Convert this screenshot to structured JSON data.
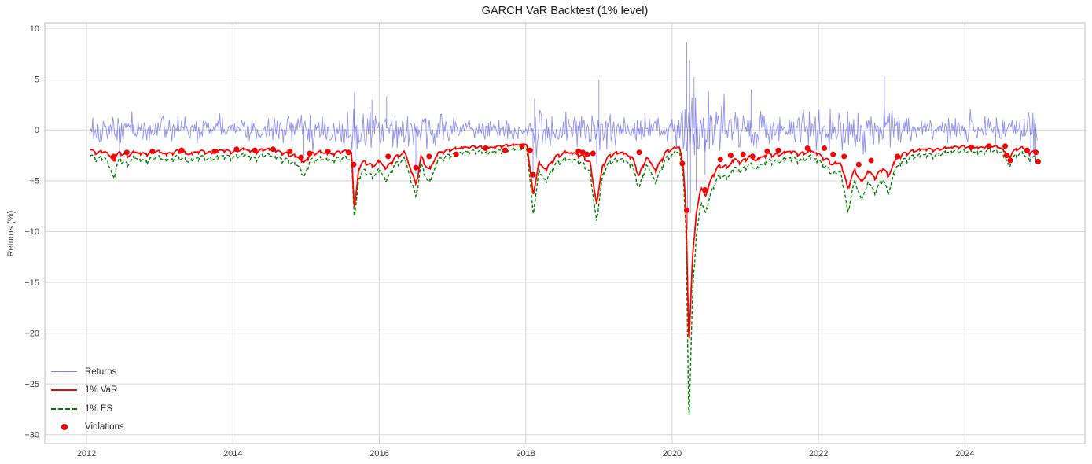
{
  "chart_data": {
    "type": "line",
    "title": "GARCH VaR Backtest (1% level)",
    "xlabel": "",
    "ylabel": "Returns (%)",
    "xlim": [
      2011.43,
      2025.64
    ],
    "ylim": [
      -30.87,
      10.55
    ],
    "x_ticks": [
      2012,
      2014,
      2016,
      2018,
      2020,
      2022,
      2024
    ],
    "y_ticks": [
      10,
      5,
      0,
      -5,
      -10,
      -15,
      -20,
      -25,
      -30
    ],
    "grid": true,
    "legend_position": "lower left",
    "data_range": [
      2012.05,
      2025.0
    ],
    "colors": {
      "returns": "rgba(85,85,235,0.65)",
      "var": "#ff0000",
      "es": "#008000",
      "violations": "#f00404",
      "grid": "#d6d6d6",
      "spine": "#c9c9c9",
      "tick_text": "#3a3a3a"
    },
    "legend": [
      {
        "label": "Returns",
        "marker": "line",
        "color": "rgba(85,85,235,0.75)"
      },
      {
        "label": "1% VaR",
        "marker": "line",
        "color": "#ff0000"
      },
      {
        "label": "1% ES",
        "marker": "dashed-line",
        "color": "#008000"
      },
      {
        "label": "Violations",
        "marker": "dot",
        "color": "#f00404"
      }
    ],
    "series": {
      "x": [
        2012.05,
        2012.15,
        2012.25,
        2012.37,
        2012.45,
        2012.55,
        2012.65,
        2012.8,
        2012.95,
        2013.1,
        2013.25,
        2013.4,
        2013.55,
        2013.7,
        2013.85,
        2014.0,
        2014.15,
        2014.3,
        2014.45,
        2014.6,
        2014.75,
        2014.9,
        2014.97,
        2015.05,
        2015.2,
        2015.35,
        2015.5,
        2015.62,
        2015.66,
        2015.72,
        2015.8,
        2015.9,
        2016.0,
        2016.1,
        2016.2,
        2016.35,
        2016.5,
        2016.57,
        2016.68,
        2016.8,
        2016.95,
        2017.1,
        2017.3,
        2017.5,
        2017.7,
        2017.9,
        2018.02,
        2018.1,
        2018.18,
        2018.28,
        2018.4,
        2018.55,
        2018.7,
        2018.8,
        2018.88,
        2018.97,
        2019.05,
        2019.15,
        2019.3,
        2019.45,
        2019.55,
        2019.65,
        2019.78,
        2019.9,
        2020.0,
        2020.1,
        2020.15,
        2020.19,
        2020.23,
        2020.28,
        2020.33,
        2020.4,
        2020.46,
        2020.55,
        2020.65,
        2020.75,
        2020.85,
        2020.95,
        2021.05,
        2021.15,
        2021.3,
        2021.45,
        2021.6,
        2021.75,
        2021.9,
        2022.0,
        2022.1,
        2022.2,
        2022.3,
        2022.4,
        2022.5,
        2022.58,
        2022.68,
        2022.78,
        2022.88,
        2022.95,
        2023.05,
        2023.15,
        2023.3,
        2023.45,
        2023.6,
        2023.75,
        2023.9,
        2024.05,
        2024.2,
        2024.35,
        2024.5,
        2024.6,
        2024.7,
        2024.8,
        2024.88,
        2024.95,
        2025.0
      ],
      "var": [
        -1.9,
        -2.2,
        -2.0,
        -2.9,
        -2.1,
        -2.5,
        -2.1,
        -2.3,
        -2.0,
        -2.3,
        -2.0,
        -2.3,
        -2.0,
        -2.2,
        -1.9,
        -2.1,
        -1.8,
        -2.1,
        -1.8,
        -2.0,
        -2.3,
        -2.6,
        -3.2,
        -2.3,
        -2.1,
        -2.3,
        -2.0,
        -2.2,
        -7.8,
        -3.6,
        -3.0,
        -3.5,
        -3.0,
        -3.7,
        -2.7,
        -2.1,
        -5.3,
        -2.6,
        -3.9,
        -2.2,
        -1.9,
        -1.7,
        -1.6,
        -1.7,
        -1.5,
        -1.4,
        -1.4,
        -6.3,
        -3.2,
        -3.8,
        -2.6,
        -2.1,
        -2.3,
        -2.6,
        -3.2,
        -7.2,
        -3.4,
        -2.4,
        -2.1,
        -2.6,
        -4.4,
        -2.6,
        -3.9,
        -2.2,
        -1.8,
        -1.6,
        -3.3,
        -8.0,
        -21.0,
        -12.5,
        -8.0,
        -5.6,
        -6.4,
        -4.4,
        -3.4,
        -3.6,
        -2.8,
        -3.1,
        -2.5,
        -2.9,
        -2.3,
        -2.4,
        -2.0,
        -2.3,
        -2.0,
        -2.3,
        -2.8,
        -3.3,
        -3.1,
        -5.6,
        -3.8,
        -5.1,
        -4.0,
        -4.6,
        -3.6,
        -4.5,
        -2.9,
        -2.3,
        -2.0,
        -1.8,
        -1.9,
        -1.7,
        -1.6,
        -1.6,
        -1.7,
        -1.5,
        -1.7,
        -2.6,
        -1.8,
        -1.7,
        -2.3,
        -1.9,
        -2.1
      ],
      "es": [
        -2.4,
        -2.8,
        -2.5,
        -4.5,
        -2.7,
        -3.3,
        -2.6,
        -3.0,
        -2.5,
        -2.9,
        -2.5,
        -3.0,
        -2.5,
        -2.8,
        -2.4,
        -2.6,
        -2.3,
        -2.7,
        -2.3,
        -2.6,
        -2.9,
        -3.4,
        -4.6,
        -2.9,
        -2.7,
        -2.9,
        -2.6,
        -2.8,
        -8.7,
        -4.6,
        -3.8,
        -4.5,
        -3.8,
        -4.9,
        -3.4,
        -2.7,
        -6.5,
        -3.3,
        -5.2,
        -2.8,
        -2.4,
        -2.1,
        -2.0,
        -2.1,
        -1.9,
        -1.8,
        -1.8,
        -8.2,
        -4.0,
        -4.9,
        -3.3,
        -2.7,
        -2.9,
        -3.3,
        -4.1,
        -8.9,
        -4.3,
        -3.0,
        -2.7,
        -3.3,
        -5.6,
        -3.3,
        -5.0,
        -2.8,
        -2.3,
        -2.0,
        -4.2,
        -10.0,
        -28.8,
        -16.0,
        -10.2,
        -7.0,
        -8.0,
        -5.6,
        -4.3,
        -4.6,
        -3.6,
        -3.9,
        -3.2,
        -3.7,
        -2.9,
        -3.0,
        -2.6,
        -2.9,
        -2.5,
        -2.9,
        -3.5,
        -4.2,
        -3.9,
        -7.9,
        -4.8,
        -6.8,
        -5.1,
        -6.0,
        -4.6,
        -6.2,
        -3.7,
        -2.9,
        -2.5,
        -2.3,
        -2.4,
        -2.1,
        -2.0,
        -2.0,
        -2.1,
        -1.9,
        -2.1,
        -3.3,
        -2.3,
        -2.2,
        -2.9,
        -2.4,
        -2.7
      ]
    },
    "returns_mean": 0.1,
    "returns_volatility": {
      "x": [
        2012.05,
        2012.4,
        2012.8,
        2013.2,
        2013.8,
        2014.4,
        2014.95,
        2015.3,
        2015.66,
        2015.9,
        2016.2,
        2016.5,
        2016.8,
        2017.2,
        2017.8,
        2018.05,
        2018.1,
        2018.4,
        2018.8,
        2018.97,
        2019.3,
        2019.7,
        2020.0,
        2020.15,
        2020.23,
        2020.35,
        2020.55,
        2020.8,
        2021.1,
        2021.5,
        2021.9,
        2022.2,
        2022.5,
        2022.9,
        2023.2,
        2023.6,
        2024.0,
        2024.4,
        2024.7,
        2025.0
      ],
      "sd": [
        0.75,
        0.9,
        0.7,
        0.65,
        0.6,
        0.6,
        0.85,
        0.7,
        1.3,
        1.0,
        0.95,
        1.1,
        0.8,
        0.45,
        0.5,
        0.6,
        1.3,
        0.8,
        0.9,
        1.15,
        0.75,
        0.8,
        0.55,
        2.2,
        3.4,
        2.0,
        1.3,
        1.0,
        0.95,
        0.8,
        0.85,
        1.15,
        1.25,
        1.1,
        0.8,
        0.65,
        0.6,
        0.65,
        0.7,
        0.85
      ]
    },
    "returns_extremes": [
      [
        2012.45,
        -2.7
      ],
      [
        2014.97,
        -2.9
      ],
      [
        2015.66,
        3.7
      ],
      [
        2015.67,
        -4.2
      ],
      [
        2015.9,
        3.0
      ],
      [
        2016.1,
        3.3
      ],
      [
        2016.5,
        -4.3
      ],
      [
        2018.1,
        -4.4
      ],
      [
        2018.12,
        3.1
      ],
      [
        2018.97,
        -3.3
      ],
      [
        2019.0,
        4.9
      ],
      [
        2020.2,
        8.6
      ],
      [
        2020.21,
        -9.8
      ],
      [
        2020.24,
        6.9
      ],
      [
        2020.25,
        -8.2
      ],
      [
        2020.3,
        5.2
      ],
      [
        2020.33,
        -6.0
      ],
      [
        2020.45,
        -4.4
      ],
      [
        2021.08,
        4.0
      ],
      [
        2022.9,
        5.3
      ],
      [
        2024.9,
        -3.5
      ],
      [
        2024.97,
        -3.3
      ]
    ],
    "violations": [
      [
        2012.37,
        -2.6
      ],
      [
        2012.55,
        -2.2
      ],
      [
        2012.9,
        -2.1
      ],
      [
        2013.3,
        -2.0
      ],
      [
        2013.75,
        -2.1
      ],
      [
        2014.05,
        -1.9
      ],
      [
        2014.3,
        -2.0
      ],
      [
        2014.55,
        -1.9
      ],
      [
        2014.78,
        -2.1
      ],
      [
        2014.93,
        -2.7
      ],
      [
        2015.05,
        -2.3
      ],
      [
        2015.3,
        -2.1
      ],
      [
        2015.58,
        -2.2
      ],
      [
        2015.65,
        -3.4
      ],
      [
        2016.12,
        -2.6
      ],
      [
        2016.5,
        -3.7
      ],
      [
        2016.68,
        -2.6
      ],
      [
        2017.05,
        -2.4
      ],
      [
        2017.45,
        -1.8
      ],
      [
        2017.72,
        -2.0
      ],
      [
        2017.95,
        -1.6
      ],
      [
        2018.06,
        -2.0
      ],
      [
        2018.1,
        -4.4
      ],
      [
        2018.72,
        -2.1
      ],
      [
        2018.78,
        -2.2
      ],
      [
        2018.84,
        -2.4
      ],
      [
        2018.92,
        -2.3
      ],
      [
        2019.55,
        -2.2
      ],
      [
        2020.14,
        -3.3
      ],
      [
        2020.2,
        -7.9
      ],
      [
        2020.45,
        -5.9
      ],
      [
        2020.66,
        -2.9
      ],
      [
        2020.8,
        -2.5
      ],
      [
        2020.97,
        -2.4
      ],
      [
        2021.1,
        -2.6
      ],
      [
        2021.3,
        -2.1
      ],
      [
        2021.45,
        -2.0
      ],
      [
        2021.85,
        -1.8
      ],
      [
        2022.08,
        -1.8
      ],
      [
        2022.2,
        -2.4
      ],
      [
        2022.35,
        -2.6
      ],
      [
        2022.55,
        -3.4
      ],
      [
        2022.72,
        -3.0
      ],
      [
        2023.08,
        -2.6
      ],
      [
        2024.09,
        -1.7
      ],
      [
        2024.33,
        -1.6
      ],
      [
        2024.55,
        -1.6
      ],
      [
        2024.57,
        -2.5
      ],
      [
        2024.62,
        -3.0
      ],
      [
        2024.85,
        -2.0
      ],
      [
        2024.97,
        -2.2
      ],
      [
        2025.0,
        -3.1
      ]
    ]
  }
}
